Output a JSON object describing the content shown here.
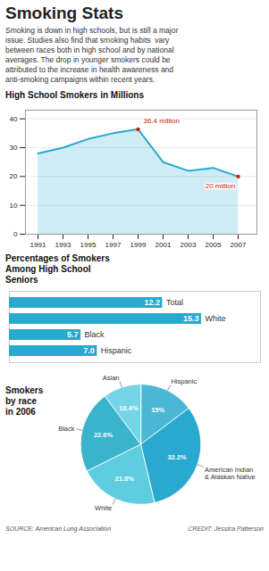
{
  "title": "Smoking Stats",
  "subtitle": "Smoking is down in high schools, but is still a major\nissue. Studies also find that smoking habits  vary\nbetween races both in high school and by national\naverages. The drop in younger smokers could be\nattributed to the increase in health awareness and\nanti-smoking campaigns within recent years.",
  "annotations": [
    "SOURCE: American Lung Association",
    "CREDIT: Jessica Patterson"
  ],
  "chart_data": [
    {
      "type": "line",
      "title": "High School Smokers in Millions",
      "x": [
        1991,
        1993,
        1995,
        1997,
        1999,
        2001,
        2003,
        2005,
        2007
      ],
      "values": [
        28,
        30,
        33,
        35,
        36.4,
        25,
        22,
        23,
        20
      ],
      "color": "#29a9d0",
      "xlim": [
        1990,
        2008.5
      ],
      "xticks": [
        1991,
        1993,
        1995,
        1997,
        1999,
        2001,
        2003,
        2005,
        2007
      ],
      "ylim": [
        0,
        43
      ],
      "yticks": [
        0,
        10,
        20,
        30,
        40
      ],
      "grid": true,
      "annotations": [
        {
          "text": "36.4 million",
          "x": 1999,
          "y": 36.4,
          "color": "#cc2200"
        },
        {
          "text": "20 million",
          "x": 2007,
          "y": 20,
          "color": "#cc2200"
        }
      ]
    },
    {
      "type": "bar",
      "title": "Percentages of Smokers\nAmong High School\nSeniors",
      "orientation": "horizontal",
      "categories": [
        "Total",
        "White",
        "Black",
        "Hispanic"
      ],
      "values": [
        12.2,
        15.3,
        5.7,
        7.0
      ],
      "value_labels": [
        "12.2",
        "15.3",
        "5.7",
        "7.0"
      ],
      "color": "#29a9d0",
      "xlim": [
        0,
        20
      ],
      "tick_labels": false,
      "data_labels": true
    },
    {
      "type": "pie",
      "title": "Smokers\nby race\nin 2006",
      "categories": [
        "Hispanic",
        "American Indian\n& Alaskan Native",
        "White",
        "Black",
        "Asian"
      ],
      "values": [
        15.0,
        32.2,
        21.8,
        22.6,
        10.4
      ],
      "value_labels": [
        "15%",
        "32.2%",
        "21.8%",
        "22.6%",
        "10.4%"
      ],
      "colors": [
        "#4ab8d4",
        "#29a9d0",
        "#5ecde0",
        "#3ab3cc",
        "#75d4e8"
      ],
      "data_labels": true
    }
  ]
}
